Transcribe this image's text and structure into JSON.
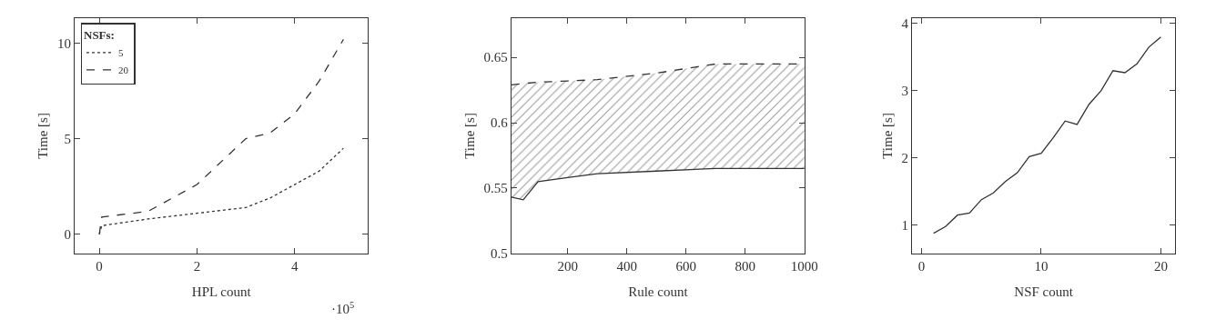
{
  "chart_data": [
    {
      "type": "line",
      "xlabel": "HPL count",
      "ylabel": "Time [s]",
      "legend_title": "NSFs:",
      "legend": "top left",
      "annotations": [
        "·10$^{5}$"
      ],
      "xlim": [
        -0.5,
        5.5
      ],
      "xticks": [
        0,
        2,
        4
      ],
      "ylim": [
        -1,
        11.3
      ],
      "yticks": [
        0,
        5,
        10
      ],
      "series": [
        {
          "name": "5",
          "color": "#333333",
          "line_style": "dotted",
          "x": [
            0,
            0.05,
            1,
            2,
            3,
            3.5,
            4,
            4.5,
            5
          ],
          "values": [
            0,
            0.45,
            0.8,
            1.1,
            1.4,
            1.9,
            2.6,
            3.3,
            4.5
          ]
        },
        {
          "name": "20",
          "color": "#333333",
          "line_style": "dashed",
          "x": [
            0,
            0.05,
            1,
            2,
            3,
            3.5,
            4,
            4.5,
            5
          ],
          "values": [
            0,
            0.9,
            1.2,
            2.6,
            5.0,
            5.3,
            6.3,
            8.0,
            10.2
          ]
        }
      ]
    },
    {
      "type": "line",
      "xlabel": "Rule count",
      "ylabel": "Time [s]",
      "legend": false,
      "xlim": [
        10,
        1000
      ],
      "xticks": [
        200,
        400,
        600,
        800,
        1000
      ],
      "ylim": [
        0.5,
        0.68
      ],
      "yticks": [
        0.5,
        0.55,
        0.6,
        0.65
      ],
      "series": [
        {
          "color": "#333333",
          "line_style": "solid",
          "x": [
            10,
            50,
            100,
            200,
            300,
            500,
            700,
            1000
          ],
          "values": [
            0.543,
            0.541,
            0.555,
            0.558,
            0.561,
            0.563,
            0.565,
            0.565
          ]
        },
        {
          "type": "area",
          "color": "#333333",
          "line_style": "dashed",
          "x": [
            10,
            50,
            100,
            200,
            300,
            500,
            700,
            1000
          ],
          "values": [
            0.629,
            0.63,
            0.631,
            0.632,
            0.633,
            0.638,
            0.645,
            0.645
          ]
        }
      ]
    },
    {
      "type": "line",
      "xlabel": "NSF count",
      "ylabel": "Time [s]",
      "legend": false,
      "xlim": [
        -0.8,
        21.2
      ],
      "xticks": [
        0,
        10,
        20
      ],
      "ylim": [
        0.58,
        4.08
      ],
      "yticks": [
        1,
        2,
        3,
        4
      ],
      "series": [
        {
          "color": "#333333",
          "line_style": "solid",
          "x": [
            1,
            2,
            3,
            4,
            5,
            6,
            7,
            8,
            9,
            10,
            11,
            12,
            13,
            14,
            15,
            16,
            17,
            18,
            19,
            20
          ],
          "values": [
            0.88,
            0.98,
            1.15,
            1.18,
            1.38,
            1.48,
            1.65,
            1.78,
            2.02,
            2.07,
            2.3,
            2.55,
            2.5,
            2.8,
            3.0,
            3.3,
            3.27,
            3.4,
            3.65,
            3.8
          ]
        }
      ]
    }
  ]
}
